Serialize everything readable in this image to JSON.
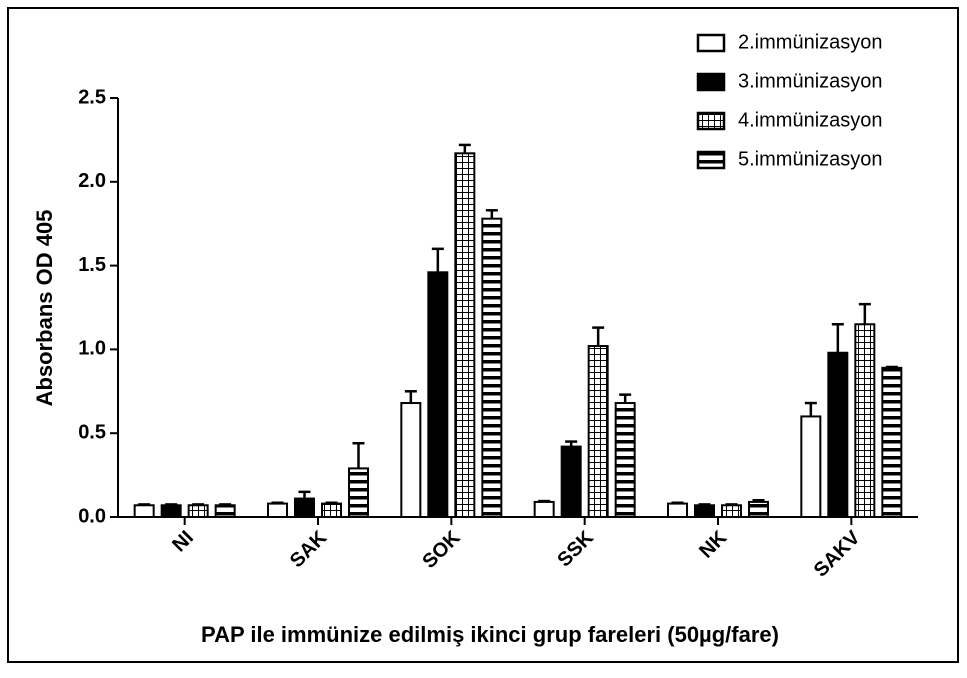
{
  "chart_data": {
    "type": "bar",
    "x_label": "PAP ile immünize edilmiş ikinci grup fareleri (50µg/fare)",
    "y_label": "Absorbans OD 405",
    "categories": [
      "NI",
      "SAK",
      "SOK",
      "SSK",
      "NK",
      "SAKV"
    ],
    "series": [
      {
        "name": "2.immünizasyon",
        "color": "#ffffff",
        "pattern": "solid",
        "values": [
          0.07,
          0.08,
          0.68,
          0.09,
          0.08,
          0.6
        ],
        "errors": [
          0.005,
          0.005,
          0.07,
          0.005,
          0.005,
          0.08
        ]
      },
      {
        "name": "3.immünizasyon",
        "color": "#000000",
        "pattern": "solid",
        "values": [
          0.07,
          0.11,
          1.46,
          0.42,
          0.07,
          0.98
        ],
        "errors": [
          0.005,
          0.04,
          0.14,
          0.03,
          0.005,
          0.17
        ]
      },
      {
        "name": "4.immünizasyon",
        "color": "#000000",
        "pattern": "grid",
        "values": [
          0.07,
          0.08,
          2.17,
          1.02,
          0.07,
          1.15
        ],
        "errors": [
          0.005,
          0.005,
          0.05,
          0.11,
          0.005,
          0.12
        ]
      },
      {
        "name": "5.immünizasyon",
        "color": "#000000",
        "pattern": "hstripes",
        "values": [
          0.07,
          0.29,
          1.78,
          0.68,
          0.09,
          0.89
        ],
        "errors": [
          0.005,
          0.15,
          0.05,
          0.05,
          0.01,
          0.005
        ]
      }
    ],
    "ylim": [
      0,
      2.5
    ],
    "yticks": [
      {
        "value": 0,
        "label": "0.0"
      },
      0.5,
      {
        "value": 1,
        "label": "1.0"
      },
      1.5,
      {
        "value": 2,
        "label": "2.0"
      },
      2.5
    ],
    "legend": "upper right"
  }
}
